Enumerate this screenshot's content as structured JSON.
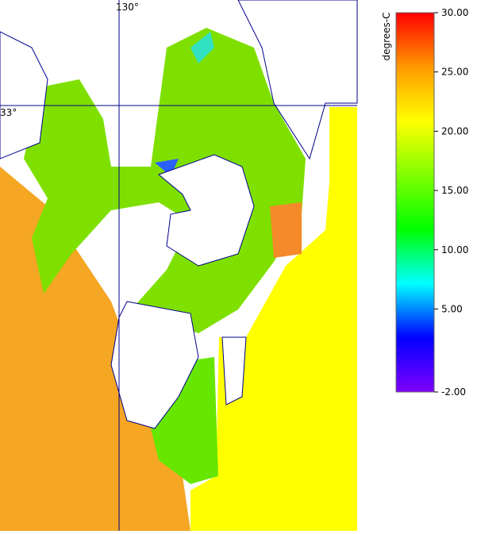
{
  "map": {
    "lon_label": "130°",
    "lat_label": "33°"
  },
  "colorbar": {
    "title": "degrees-C",
    "range": [
      -2,
      30
    ],
    "ticks": [
      {
        "value": 30,
        "label": "30.00"
      },
      {
        "value": 25,
        "label": "25.00"
      },
      {
        "value": 20,
        "label": "20.00"
      },
      {
        "value": 15,
        "label": "15.00"
      },
      {
        "value": 10,
        "label": "10.00"
      },
      {
        "value": 5,
        "label": "5.00"
      },
      {
        "value": -2,
        "label": "-2.00"
      }
    ],
    "colors": [
      "#ff0000",
      "#ff9900",
      "#ffff00",
      "#80ff00",
      "#00ff00",
      "#00ffff",
      "#0000ff",
      "#8000ff"
    ]
  }
}
